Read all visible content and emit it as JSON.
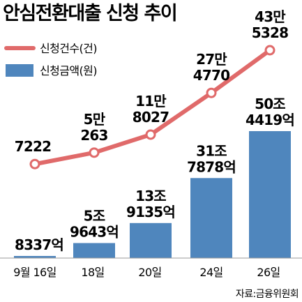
{
  "chart_data": {
    "type": "bar+line",
    "title": "안심전환대출 신청 추이",
    "categories": [
      "9월 16일",
      "18일",
      "20일",
      "24일",
      "26일"
    ],
    "series": [
      {
        "name": "신청건수(건)",
        "type": "line",
        "color": "#e06a6a",
        "values": [
          7222,
          50263,
          118027,
          274770,
          435328
        ],
        "labels": [
          [
            "7222"
          ],
          [
            "5만",
            "263"
          ],
          [
            "11만",
            "8027"
          ],
          [
            "27만",
            "4770"
          ],
          [
            "43만",
            "5328"
          ]
        ]
      },
      {
        "name": "신청금액(원)",
        "type": "bar",
        "color": "#4f86bd",
        "values": [
          0.8337,
          5.9643,
          13.9135,
          31.7878,
          50.4419
        ],
        "unit": "조원",
        "labels": [
          [
            "8337억"
          ],
          [
            "5조",
            "9643억"
          ],
          [
            "13조",
            "9135억"
          ],
          [
            "31조",
            "7878억"
          ],
          [
            "50조",
            "4419억"
          ]
        ]
      }
    ],
    "source": "자료:금융위원회"
  }
}
